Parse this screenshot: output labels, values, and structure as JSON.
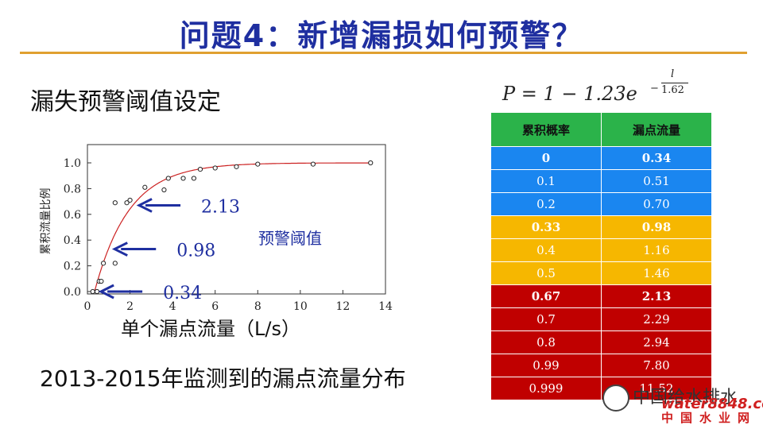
{
  "title": "问题4：新增漏损如何预警？",
  "subtitle": "漏失预警阈值设定",
  "caption": "2013-2015年监测到的漏点流量分布",
  "formula": {
    "text": "P = 1 − 1.23e",
    "exp_minus": "−",
    "exp_numerator": "l",
    "exp_denominator": "1.62"
  },
  "table": {
    "headers": [
      "累积概率",
      "漏点流量"
    ],
    "rows": [
      {
        "p": "0",
        "q": "0.34",
        "color": "blue",
        "bold": true
      },
      {
        "p": "0.1",
        "q": "0.51",
        "color": "blue",
        "bold": false
      },
      {
        "p": "0.2",
        "q": "0.70",
        "color": "blue",
        "bold": false
      },
      {
        "p": "0.33",
        "q": "0.98",
        "color": "yellow",
        "bold": true
      },
      {
        "p": "0.4",
        "q": "1.16",
        "color": "yellow",
        "bold": false
      },
      {
        "p": "0.5",
        "q": "1.46",
        "color": "yellow",
        "bold": false
      },
      {
        "p": "0.67",
        "q": "2.13",
        "color": "red",
        "bold": true
      },
      {
        "p": "0.7",
        "q": "2.29",
        "color": "red",
        "bold": false
      },
      {
        "p": "0.8",
        "q": "2.94",
        "color": "red",
        "bold": false
      },
      {
        "p": "0.99",
        "q": "7.80",
        "color": "red",
        "bold": false
      },
      {
        "p": "0.999",
        "q": "11.52",
        "color": "red",
        "bold": false
      }
    ]
  },
  "watermark": {
    "text": "中国给水排水",
    "brand": "water8848.com",
    "brand_cn": "中国水业网"
  },
  "colors": {
    "title": "#1f2fa0",
    "rule": "#e0a030",
    "arrow": "#1f2fa0",
    "curve": "#cc2222",
    "blue": "#1a86f0",
    "yellow": "#f6b700",
    "red": "#c00000",
    "header": "#2bb34a"
  },
  "chart_data": {
    "type": "scatter",
    "xlabel": "单个漏点流量（L/s）",
    "ylabel": "累积流量比例",
    "xlim": [
      0,
      14
    ],
    "ylim": [
      0.0,
      1.0
    ],
    "x_ticks": [
      "0",
      "2",
      "4",
      "6",
      "8",
      "10",
      "12",
      "14"
    ],
    "y_ticks": [
      "0.0",
      "0.2",
      "0.4",
      "0.6",
      "0.8",
      "1.0"
    ],
    "points": [
      {
        "x": 0.25,
        "y": 0.0
      },
      {
        "x": 0.45,
        "y": 0.0
      },
      {
        "x": 0.55,
        "y": 0.08
      },
      {
        "x": 0.65,
        "y": 0.08
      },
      {
        "x": 0.75,
        "y": 0.22
      },
      {
        "x": 1.3,
        "y": 0.22
      },
      {
        "x": 1.3,
        "y": 0.69
      },
      {
        "x": 1.85,
        "y": 0.69
      },
      {
        "x": 2.0,
        "y": 0.71
      },
      {
        "x": 2.7,
        "y": 0.81
      },
      {
        "x": 3.6,
        "y": 0.79
      },
      {
        "x": 3.8,
        "y": 0.88
      },
      {
        "x": 4.5,
        "y": 0.88
      },
      {
        "x": 5.0,
        "y": 0.88
      },
      {
        "x": 5.3,
        "y": 0.95
      },
      {
        "x": 6.0,
        "y": 0.96
      },
      {
        "x": 7.0,
        "y": 0.97
      },
      {
        "x": 8.0,
        "y": 0.99
      },
      {
        "x": 10.6,
        "y": 0.99
      },
      {
        "x": 13.3,
        "y": 1.0
      }
    ],
    "fit_curve": {
      "name": "P = 1 − 1.23e^(−l/1.62)",
      "a": 1.23,
      "b": 1.62
    },
    "annotations": [
      {
        "label": "2.13",
        "target_x": 2.13,
        "target_y": 0.67
      },
      {
        "label": "0.98",
        "target_x": 0.98,
        "target_y": 0.33
      },
      {
        "label": "0.34",
        "target_x": 0.34,
        "target_y": 0.0
      }
    ],
    "note": "预警阈值"
  }
}
